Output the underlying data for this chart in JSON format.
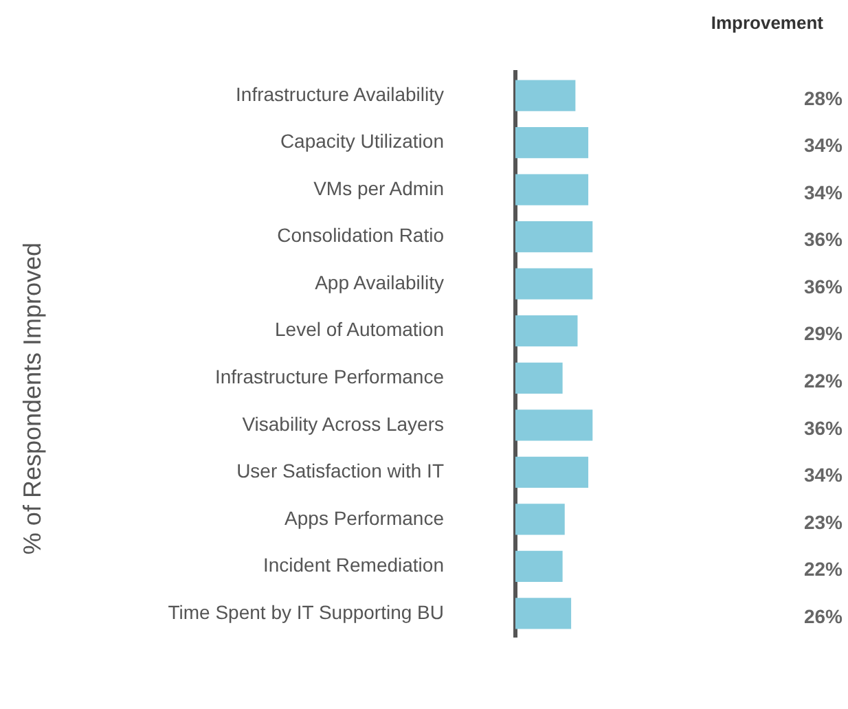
{
  "chart_data": {
    "type": "bar",
    "orientation": "horizontal",
    "title": "Improvement",
    "ylabel": "% of Respondents Improved",
    "categories": [
      "Infrastructure Availability",
      "Capacity Utilization",
      "VMs per Admin",
      "Consolidation Ratio",
      "App Availability",
      "Level of Automation",
      "Infrastructure Performance",
      "Visability Across Layers",
      "User Satisfaction with IT",
      "Apps Performance",
      "Incident Remediation",
      "Time Spent by IT Supporting BU"
    ],
    "values": [
      28,
      34,
      34,
      36,
      36,
      29,
      22,
      36,
      34,
      23,
      22,
      26
    ],
    "value_labels": [
      "28%",
      "34%",
      "34%",
      "36%",
      "36%",
      "29%",
      "22%",
      "36%",
      "34%",
      "23%",
      "22%",
      "26%"
    ],
    "color": "#86cbdd"
  }
}
